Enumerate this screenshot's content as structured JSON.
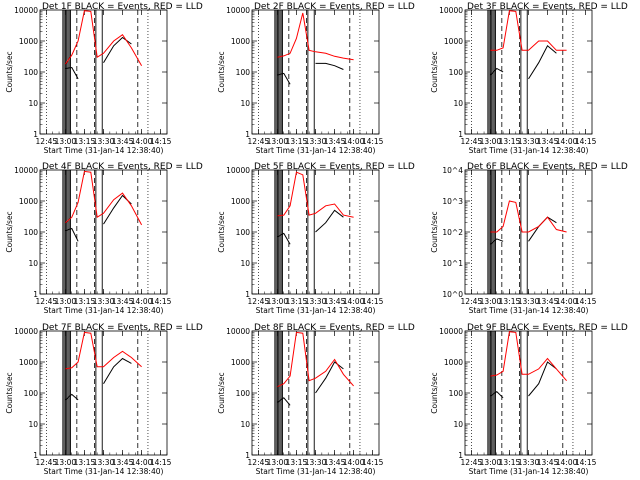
{
  "panel_template": {
    "title_prefix": "Det ",
    "title_suffix": "  BLACK = Events, RED = LLD",
    "xlabel": "Start Time (31-Jan-14 12:38:40)",
    "ylabel": "Counts/sec",
    "x_ticks": [
      "12:45",
      "13:00",
      "13:15",
      "13:30",
      "13:45",
      "14:00",
      "14:15"
    ],
    "y_ticks_decimal": [
      "1",
      "10",
      "100",
      "1000",
      "10000"
    ],
    "y_ticks_power": [
      "10^0",
      "10^1",
      "10^2",
      "10^3",
      "10^4"
    ]
  },
  "colors": {
    "events": "#000000",
    "lld": "#ff0000"
  },
  "chart_data": [
    {
      "type": "line",
      "det": "1F",
      "ylog": true,
      "tick_style": "decimal",
      "ylim": [
        1,
        10000
      ],
      "x": [
        "12:45",
        "13:00",
        "13:05",
        "13:10",
        "13:15",
        "13:20",
        "13:25",
        "13:30",
        "13:38",
        "13:45",
        "13:52",
        "14:00"
      ],
      "series": [
        {
          "name": "BLACK = Events",
          "values": [
            null,
            130,
            140,
            60,
            null,
            null,
            null,
            200,
            700,
            1300,
            800,
            null
          ]
        },
        {
          "name": "RED = LLD",
          "values": [
            null,
            180,
            350,
            1000,
            9500,
            9000,
            300,
            400,
            1000,
            1600,
            600,
            160
          ]
        }
      ]
    },
    {
      "type": "line",
      "det": "2F",
      "ylog": true,
      "tick_style": "decimal",
      "ylim": [
        1,
        10000
      ],
      "x": [
        "12:45",
        "13:00",
        "13:05",
        "13:10",
        "13:15",
        "13:20",
        "13:25",
        "13:30",
        "13:38",
        "13:45",
        "13:52",
        "14:00"
      ],
      "series": [
        {
          "name": "BLACK = Events",
          "values": [
            null,
            80,
            90,
            40,
            null,
            null,
            null,
            190,
            190,
            160,
            120,
            null
          ]
        },
        {
          "name": "RED = LLD",
          "values": [
            null,
            300,
            330,
            400,
            1200,
            8000,
            500,
            450,
            400,
            320,
            280,
            250
          ]
        }
      ]
    },
    {
      "type": "line",
      "det": "3F",
      "ylog": true,
      "tick_style": "decimal",
      "ylim": [
        1,
        10000
      ],
      "x": [
        "12:45",
        "13:00",
        "13:05",
        "13:10",
        "13:15",
        "13:20",
        "13:25",
        "13:30",
        "13:38",
        "13:45",
        "13:52",
        "14:00"
      ],
      "series": [
        {
          "name": "BLACK = Events",
          "values": [
            null,
            80,
            130,
            100,
            null,
            null,
            null,
            60,
            200,
            700,
            400,
            null
          ]
        },
        {
          "name": "RED = LLD",
          "values": [
            null,
            500,
            500,
            600,
            9500,
            9000,
            500,
            500,
            1000,
            1000,
            500,
            500
          ]
        }
      ]
    },
    {
      "type": "line",
      "det": "4F",
      "ylog": true,
      "tick_style": "decimal",
      "ylim": [
        1,
        10000
      ],
      "x": [
        "12:45",
        "13:00",
        "13:05",
        "13:10",
        "13:15",
        "13:20",
        "13:25",
        "13:30",
        "13:38",
        "13:45",
        "13:52",
        "14:00"
      ],
      "series": [
        {
          "name": "BLACK = Events",
          "values": [
            null,
            110,
            130,
            50,
            null,
            null,
            null,
            180,
            600,
            1500,
            800,
            null
          ]
        },
        {
          "name": "RED = LLD",
          "values": [
            null,
            200,
            300,
            900,
            9000,
            8500,
            300,
            400,
            1100,
            1800,
            700,
            170
          ]
        }
      ]
    },
    {
      "type": "line",
      "det": "5F",
      "ylog": true,
      "tick_style": "decimal",
      "ylim": [
        1,
        10000
      ],
      "x": [
        "12:45",
        "13:00",
        "13:05",
        "13:10",
        "13:15",
        "13:20",
        "13:25",
        "13:30",
        "13:38",
        "13:45",
        "13:52",
        "14:00"
      ],
      "series": [
        {
          "name": "BLACK = Events",
          "values": [
            null,
            70,
            90,
            40,
            null,
            null,
            null,
            100,
            200,
            500,
            300,
            null
          ]
        },
        {
          "name": "RED = LLD",
          "values": [
            null,
            330,
            350,
            700,
            8500,
            7000,
            350,
            400,
            700,
            800,
            350,
            300
          ]
        }
      ]
    },
    {
      "type": "line",
      "det": "6F",
      "ylog": true,
      "tick_style": "power",
      "ylim": [
        1,
        10000
      ],
      "x": [
        "12:45",
        "13:00",
        "13:05",
        "13:10",
        "13:15",
        "13:20",
        "13:25",
        "13:30",
        "13:38",
        "13:45",
        "13:52",
        "14:00"
      ],
      "series": [
        {
          "name": "BLACK = Events",
          "values": [
            null,
            40,
            60,
            50,
            null,
            null,
            null,
            50,
            150,
            300,
            200,
            null
          ]
        },
        {
          "name": "RED = LLD",
          "values": [
            null,
            100,
            100,
            150,
            1000,
            900,
            100,
            100,
            150,
            300,
            120,
            100
          ]
        }
      ]
    },
    {
      "type": "line",
      "det": "7F",
      "ylog": true,
      "tick_style": "decimal",
      "ylim": [
        1,
        10000
      ],
      "x": [
        "12:45",
        "13:00",
        "13:05",
        "13:10",
        "13:15",
        "13:20",
        "13:25",
        "13:30",
        "13:38",
        "13:45",
        "13:52",
        "14:00"
      ],
      "series": [
        {
          "name": "BLACK = Events",
          "values": [
            null,
            60,
            90,
            60,
            null,
            null,
            null,
            200,
            700,
            1300,
            900,
            null
          ]
        },
        {
          "name": "RED = LLD",
          "values": [
            null,
            600,
            650,
            1000,
            9000,
            8500,
            700,
            700,
            1400,
            2200,
            1400,
            700
          ]
        }
      ]
    },
    {
      "type": "line",
      "det": "8F",
      "ylog": true,
      "tick_style": "decimal",
      "ylim": [
        1,
        10000
      ],
      "x": [
        "12:45",
        "13:00",
        "13:05",
        "13:10",
        "13:15",
        "13:20",
        "13:25",
        "13:30",
        "13:38",
        "13:45",
        "13:52",
        "14:00"
      ],
      "series": [
        {
          "name": "BLACK = Events",
          "values": [
            null,
            50,
            70,
            40,
            null,
            null,
            null,
            100,
            300,
            1000,
            600,
            null
          ]
        },
        {
          "name": "RED = LLD",
          "values": [
            null,
            160,
            200,
            350,
            9000,
            8500,
            250,
            300,
            500,
            1200,
            400,
            170
          ]
        }
      ]
    },
    {
      "type": "line",
      "det": "9F",
      "ylog": true,
      "tick_style": "decimal",
      "ylim": [
        1,
        10000
      ],
      "x": [
        "12:45",
        "13:00",
        "13:05",
        "13:10",
        "13:15",
        "13:20",
        "13:25",
        "13:30",
        "13:38",
        "13:45",
        "13:52",
        "14:00"
      ],
      "series": [
        {
          "name": "BLACK = Events",
          "values": [
            null,
            80,
            110,
            70,
            null,
            null,
            null,
            80,
            200,
            1000,
            600,
            null
          ]
        },
        {
          "name": "RED = LLD",
          "values": [
            null,
            350,
            380,
            500,
            9500,
            9000,
            400,
            400,
            600,
            1300,
            600,
            250
          ]
        }
      ]
    }
  ]
}
